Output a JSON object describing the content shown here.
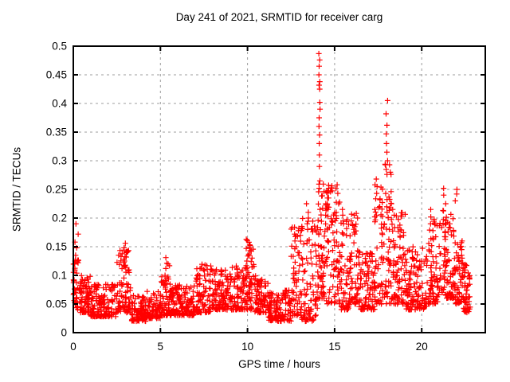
{
  "chart_data": {
    "type": "scatter",
    "title": "Day 241 of 2021, SRMTID for receiver carg",
    "xlabel": "GPS time / hours",
    "ylabel": "SRMTID / TECUs",
    "xlim": [
      0,
      23.65
    ],
    "ylim": [
      0,
      0.5
    ],
    "xticks": {
      "values": [
        0,
        5,
        10,
        15,
        20
      ],
      "labels": [
        "0",
        "5",
        "10",
        "15",
        "20"
      ]
    },
    "yticks": {
      "values": [
        0,
        0.05,
        0.1,
        0.15,
        0.2,
        0.25,
        0.3,
        0.35,
        0.4,
        0.45,
        0.5
      ],
      "labels": [
        "0",
        "0.05",
        "0.1",
        "0.15",
        "0.2",
        "0.25",
        "0.3",
        "0.35",
        "0.4",
        "0.45",
        "0.5"
      ]
    },
    "grid": {
      "show": true,
      "color": "#9c9c9c",
      "dash": "3,4"
    },
    "legend": {
      "show": false
    },
    "background": "#ffffff",
    "border_color": "#000000",
    "marker": {
      "shape": "plus",
      "color": "#ff0000",
      "size": 7,
      "stroke_width": 1.2
    },
    "series_name": "SRMTID",
    "seed": 241,
    "scatter_envelope": [
      {
        "t0": 0.0,
        "t1": 0.3,
        "lo": 0.04,
        "hi": 0.13,
        "n": 35
      },
      {
        "t0": 0.3,
        "t1": 1.0,
        "lo": 0.035,
        "hi": 0.1,
        "n": 75
      },
      {
        "t0": 1.0,
        "t1": 2.5,
        "lo": 0.028,
        "hi": 0.085,
        "n": 150
      },
      {
        "t0": 2.5,
        "t1": 3.3,
        "lo": 0.035,
        "hi": 0.145,
        "n": 85
      },
      {
        "t0": 3.3,
        "t1": 4.2,
        "lo": 0.02,
        "hi": 0.065,
        "n": 90
      },
      {
        "t0": 4.2,
        "t1": 5.0,
        "lo": 0.025,
        "hi": 0.075,
        "n": 85
      },
      {
        "t0": 5.0,
        "t1": 5.6,
        "lo": 0.03,
        "hi": 0.12,
        "n": 60
      },
      {
        "t0": 5.6,
        "t1": 7.0,
        "lo": 0.03,
        "hi": 0.085,
        "n": 140
      },
      {
        "t0": 7.0,
        "t1": 8.0,
        "lo": 0.035,
        "hi": 0.12,
        "n": 100
      },
      {
        "t0": 8.0,
        "t1": 9.0,
        "lo": 0.04,
        "hi": 0.11,
        "n": 100
      },
      {
        "t0": 9.0,
        "t1": 9.8,
        "lo": 0.04,
        "hi": 0.12,
        "n": 80
      },
      {
        "t0": 9.8,
        "t1": 10.4,
        "lo": 0.04,
        "hi": 0.165,
        "n": 60
      },
      {
        "t0": 10.4,
        "t1": 11.2,
        "lo": 0.035,
        "hi": 0.1,
        "n": 80
      },
      {
        "t0": 11.2,
        "t1": 12.5,
        "lo": 0.02,
        "hi": 0.075,
        "n": 130
      },
      {
        "t0": 12.5,
        "t1": 13.1,
        "lo": 0.03,
        "hi": 0.185,
        "n": 60
      },
      {
        "t0": 13.1,
        "t1": 14.05,
        "lo": 0.02,
        "hi": 0.2,
        "n": 90
      },
      {
        "t0": 14.05,
        "t1": 14.35,
        "lo": 0.06,
        "hi": 0.26,
        "n": 45
      },
      {
        "t0": 14.35,
        "t1": 15.3,
        "lo": 0.05,
        "hi": 0.26,
        "n": 95
      },
      {
        "t0": 15.3,
        "t1": 15.9,
        "lo": 0.04,
        "hi": 0.2,
        "n": 60
      },
      {
        "t0": 15.9,
        "t1": 16.4,
        "lo": 0.05,
        "hi": 0.21,
        "n": 50
      },
      {
        "t0": 16.4,
        "t1": 17.3,
        "lo": 0.04,
        "hi": 0.14,
        "n": 90
      },
      {
        "t0": 17.3,
        "t1": 17.9,
        "lo": 0.05,
        "hi": 0.27,
        "n": 60
      },
      {
        "t0": 17.9,
        "t1": 18.25,
        "lo": 0.05,
        "hi": 0.3,
        "n": 45
      },
      {
        "t0": 18.25,
        "t1": 19.1,
        "lo": 0.05,
        "hi": 0.21,
        "n": 85
      },
      {
        "t0": 19.1,
        "t1": 20.3,
        "lo": 0.04,
        "hi": 0.15,
        "n": 120
      },
      {
        "t0": 20.3,
        "t1": 21.0,
        "lo": 0.05,
        "hi": 0.2,
        "n": 70
      },
      {
        "t0": 21.0,
        "t1": 21.9,
        "lo": 0.06,
        "hi": 0.22,
        "n": 100
      },
      {
        "t0": 21.9,
        "t1": 22.4,
        "lo": 0.05,
        "hi": 0.16,
        "n": 55
      },
      {
        "t0": 22.4,
        "t1": 22.8,
        "lo": 0.035,
        "hi": 0.12,
        "n": 45
      }
    ],
    "spike_clusters": [
      {
        "t": 0.18,
        "spread": 0.22,
        "values": [
          0.125,
          0.135,
          0.148,
          0.158,
          0.172,
          0.19
        ]
      },
      {
        "t": 2.95,
        "spread": 0.25,
        "values": [
          0.115,
          0.125,
          0.132,
          0.14,
          0.148,
          0.156
        ]
      },
      {
        "t": 5.3,
        "spread": 0.2,
        "values": [
          0.1,
          0.112,
          0.121,
          0.131
        ]
      },
      {
        "t": 10.05,
        "spread": 0.25,
        "values": [
          0.125,
          0.135,
          0.143,
          0.152,
          0.163
        ]
      },
      {
        "t": 12.8,
        "spread": 0.3,
        "values": [
          0.14,
          0.15,
          0.16,
          0.172,
          0.184
        ]
      },
      {
        "t": 13.45,
        "spread": 0.15,
        "values": [
          0.16,
          0.18,
          0.19,
          0.2,
          0.21,
          0.225
        ]
      },
      {
        "t": 14.12,
        "spread": 0.1,
        "values": [
          0.265,
          0.29,
          0.31,
          0.33,
          0.345,
          0.36,
          0.375,
          0.39,
          0.402,
          0.425,
          0.432,
          0.438,
          0.45,
          0.465,
          0.476,
          0.487
        ]
      },
      {
        "t": 14.6,
        "spread": 0.3,
        "values": [
          0.205,
          0.215,
          0.225,
          0.235,
          0.245,
          0.252
        ]
      },
      {
        "t": 15.15,
        "spread": 0.2,
        "values": [
          0.21,
          0.225,
          0.243,
          0.258
        ]
      },
      {
        "t": 15.55,
        "spread": 0.2,
        "values": [
          0.195,
          0.205,
          0.215
        ]
      },
      {
        "t": 16.05,
        "spread": 0.25,
        "values": [
          0.175,
          0.185,
          0.195,
          0.205
        ]
      },
      {
        "t": 17.5,
        "spread": 0.25,
        "values": [
          0.22,
          0.232,
          0.243,
          0.255,
          0.268
        ]
      },
      {
        "t": 18.0,
        "spread": 0.12,
        "values": [
          0.285,
          0.3,
          0.315,
          0.33,
          0.347,
          0.362,
          0.382,
          0.405
        ]
      },
      {
        "t": 18.35,
        "spread": 0.2,
        "values": [
          0.205,
          0.215,
          0.225
        ]
      },
      {
        "t": 20.55,
        "spread": 0.25,
        "values": [
          0.165,
          0.178,
          0.19,
          0.202,
          0.215
        ]
      },
      {
        "t": 21.3,
        "spread": 0.2,
        "values": [
          0.225,
          0.24,
          0.252
        ]
      },
      {
        "t": 21.95,
        "spread": 0.15,
        "values": [
          0.23,
          0.242,
          0.25
        ]
      },
      {
        "t": 22.3,
        "spread": 0.2,
        "values": [
          0.13,
          0.145,
          0.16
        ]
      }
    ]
  }
}
